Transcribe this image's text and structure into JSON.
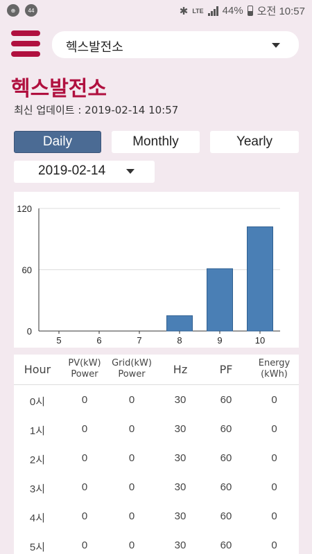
{
  "status_bar": {
    "notif_icons": [
      "app-notification-icon",
      "44"
    ],
    "network": "LTE",
    "battery": "44%",
    "time": "오전 10:57"
  },
  "header": {
    "site_name": "헥스발전소"
  },
  "page": {
    "title": "헥스발전소",
    "updated": "최신 업데이트 : 2019-02-14 10:57"
  },
  "tabs": [
    {
      "label": "Daily",
      "active": true
    },
    {
      "label": "Monthly",
      "active": false
    },
    {
      "label": "Yearly",
      "active": false
    }
  ],
  "date_picker": {
    "value": "2019-02-14"
  },
  "chart_data": {
    "type": "bar",
    "categories": [
      "5",
      "6",
      "7",
      "8",
      "9",
      "10"
    ],
    "values": [
      0,
      0,
      0,
      15,
      61,
      102
    ],
    "ylim": [
      0,
      120
    ],
    "yticks": [
      0,
      60,
      120
    ],
    "bar_color": "#4a7fb5"
  },
  "table": {
    "headers": [
      {
        "line1": "Hour",
        "line2": ""
      },
      {
        "line1": "PV(kW)",
        "line2": "Power"
      },
      {
        "line1": "Grid(kW)",
        "line2": "Power"
      },
      {
        "line1": "Hz",
        "line2": ""
      },
      {
        "line1": "PF",
        "line2": ""
      },
      {
        "line1": "Energy",
        "line2": "(kWh)"
      }
    ],
    "rows": [
      [
        "0시",
        "0",
        "0",
        "30",
        "60",
        "0"
      ],
      [
        "1시",
        "0",
        "0",
        "30",
        "60",
        "0"
      ],
      [
        "2시",
        "0",
        "0",
        "30",
        "60",
        "0"
      ],
      [
        "3시",
        "0",
        "0",
        "30",
        "60",
        "0"
      ],
      [
        "4시",
        "0",
        "0",
        "30",
        "60",
        "0"
      ],
      [
        "5시",
        "0",
        "0",
        "30",
        "60",
        "0"
      ]
    ]
  },
  "colors": {
    "background": "#f3e9ef",
    "accent": "#b0103f",
    "active_tab": "#4b6b94"
  }
}
